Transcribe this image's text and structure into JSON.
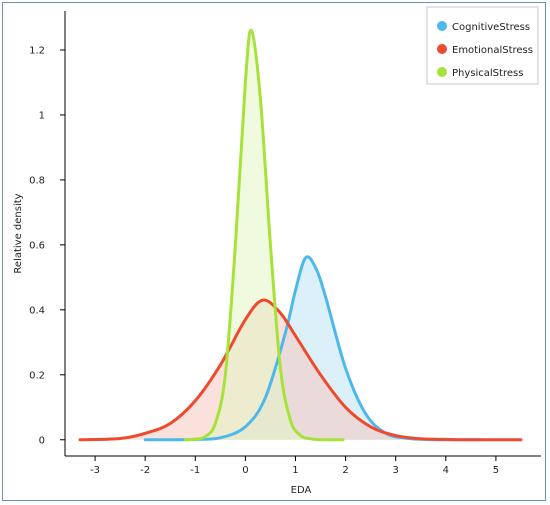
{
  "chart_data": {
    "type": "area",
    "title": "",
    "xlabel": "EDA",
    "ylabel": "Relative density",
    "xlim": [
      -3.6,
      5.9
    ],
    "ylim": [
      -0.05,
      1.32
    ],
    "xticks": [
      -3,
      -2,
      -1,
      0,
      1,
      2,
      3,
      4,
      5
    ],
    "yticks": [
      0,
      0.2,
      0.4,
      0.6,
      0.8,
      1,
      1.2
    ],
    "ytick_labels": [
      "0",
      "0.2",
      "0.4",
      "0.6",
      "0.8",
      "1",
      "1.2"
    ],
    "grid": false,
    "legend_position": "top-right",
    "series": [
      {
        "name": "CognitiveStress",
        "color": "#4db8ec",
        "fill": "#bfe4f5",
        "x": [
          -2.0,
          -1.5,
          -1.0,
          -0.5,
          0.0,
          0.4,
          0.8,
          1.0,
          1.2,
          1.4,
          1.6,
          2.0,
          2.4,
          2.8,
          3.2,
          3.6,
          4.0,
          4.7
        ],
        "values": [
          0.0,
          0.0,
          0.001,
          0.006,
          0.04,
          0.13,
          0.33,
          0.46,
          0.56,
          0.53,
          0.44,
          0.22,
          0.08,
          0.02,
          0.005,
          0.001,
          0.0,
          0.0
        ]
      },
      {
        "name": "EmotionalStress",
        "color": "#ee4a2e",
        "fill": "#f6c8c0",
        "x": [
          -3.3,
          -2.5,
          -2.0,
          -1.5,
          -1.0,
          -0.5,
          0.0,
          0.35,
          0.7,
          1.0,
          1.5,
          2.0,
          2.5,
          3.0,
          3.5,
          4.0,
          4.5,
          5.5
        ],
        "values": [
          0.0,
          0.004,
          0.02,
          0.05,
          0.12,
          0.23,
          0.37,
          0.43,
          0.39,
          0.32,
          0.2,
          0.1,
          0.04,
          0.013,
          0.003,
          0.001,
          0.0,
          0.0
        ]
      },
      {
        "name": "PhysicalStress",
        "color": "#a6e23a",
        "fill": "#e4f6c4",
        "x": [
          -1.2,
          -1.0,
          -0.8,
          -0.6,
          -0.4,
          -0.2,
          0.0,
          0.12,
          0.3,
          0.5,
          0.7,
          0.9,
          1.1,
          1.3,
          1.5,
          1.95
        ],
        "values": [
          0.0,
          0.002,
          0.01,
          0.05,
          0.2,
          0.6,
          1.1,
          1.26,
          1.05,
          0.6,
          0.22,
          0.06,
          0.013,
          0.003,
          0.0,
          0.0
        ]
      }
    ]
  }
}
